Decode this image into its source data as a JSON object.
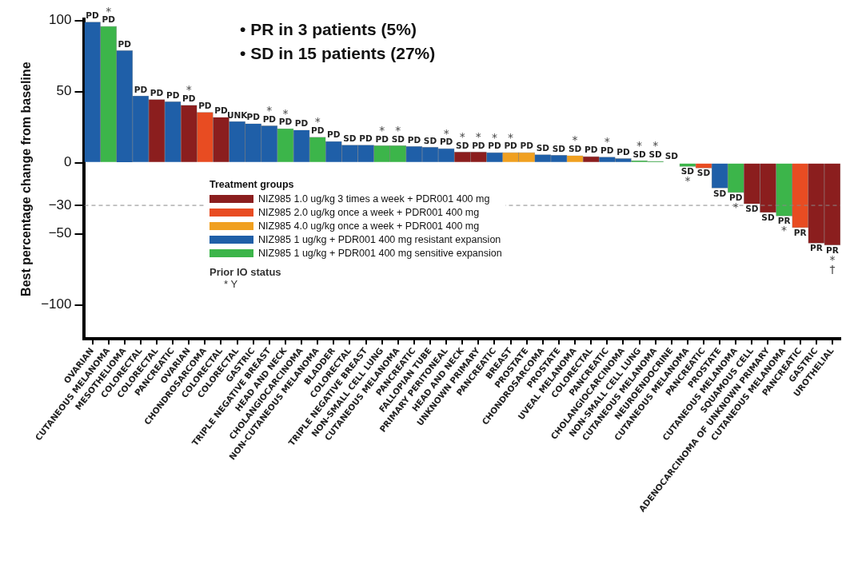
{
  "chart_data": {
    "type": "bar",
    "title": "• PR in 3 patients (5%)",
    "subtitle": "• SD in 15 patients (27%)",
    "ylabel": "Best percentage change from baseline",
    "legend_title": "Treatment groups",
    "legend": "center",
    "stacked": true,
    "grid": false,
    "categories": [
      "OVARIAN",
      "CUTANEOUS MELANOMA",
      "MESOTHELIOMA",
      "COLORECTAL",
      "COLORECTAL",
      "PANCREATIC",
      "OVARIAN",
      "CHONDROSARCOMA",
      "COLORECTAL",
      "COLORECTAL",
      "GASTRIC",
      "TRIPLE NEGATIVE BREAST",
      "HEAD AND NECK",
      "CHOLANGIOCARCINOMA",
      "NON-CUTANEOUS MELANOMA",
      "BLADDER",
      "COLORECTAL",
      "TRIPLE NEGATIVE BREAST",
      "NON-SMALL CELL LUNG",
      "CUTANEOUS MELANOMA",
      "PANCREATIC",
      "FALLOPIAN TUBE",
      "PRIMARY PERITONEAL",
      "HEAD AND NECK",
      "UNKNOWN PRIMARY",
      "PANCREATIC",
      "BREAST",
      "PROSTATE",
      "CHONDROSARCOMA",
      "PROSTATE",
      "UVEAL MELANOMA",
      "COLORECTAL",
      "PANCREATIC",
      "CHOLANGIOCARCINOMA",
      "NON-SMALL CELL LUNG",
      "CUTANEOUS MELANOMA",
      "NEUROENDOCRINE",
      "CUTANEOUS MELANOMA",
      "PANCREATIC",
      "PROSTATE",
      "CUTANEOUS MELANOMA",
      "SQUAMOUS CELL",
      "ADENOCARCINOMA OF UNKNOWN PRIMARY",
      "CUTANEOUS MELANOMA",
      "PANCREATIC",
      "GASTRIC",
      "UROTHELIAL"
    ],
    "series": [
      {
        "name": "NIZ985 1.0 ug/kg 3 times a week + PDR001 400 mg",
        "color": "#8b1e1e",
        "values": [
          null,
          null,
          null,
          null,
          44.5,
          null,
          40.5,
          null,
          32,
          null,
          null,
          null,
          null,
          null,
          null,
          null,
          null,
          null,
          null,
          null,
          null,
          null,
          null,
          7.6,
          7.6,
          null,
          null,
          null,
          null,
          null,
          null,
          4.4,
          null,
          null,
          null,
          null,
          null,
          null,
          null,
          null,
          null,
          -29,
          -35,
          null,
          null,
          -56.6,
          -58
        ],
        "value_labels": [
          null,
          null,
          null,
          null,
          "PD",
          null,
          "*\nPD",
          null,
          "PD",
          null,
          null,
          null,
          null,
          null,
          null,
          null,
          null,
          null,
          null,
          null,
          null,
          null,
          null,
          "*\nSD",
          "*\nPD",
          null,
          null,
          null,
          null,
          null,
          null,
          "PD",
          null,
          null,
          null,
          null,
          null,
          null,
          null,
          null,
          null,
          "SD",
          "SD",
          null,
          null,
          "PR",
          "PR\n*\n†"
        ]
      },
      {
        "name": "NIZ985 2.0 ug/kg once a week + PDR001 400 mg",
        "color": "#e84c22",
        "values": [
          null,
          null,
          null,
          null,
          null,
          null,
          null,
          35.5,
          null,
          null,
          null,
          null,
          null,
          null,
          null,
          null,
          null,
          null,
          null,
          null,
          null,
          null,
          null,
          null,
          null,
          null,
          null,
          null,
          null,
          null,
          null,
          null,
          null,
          null,
          null,
          null,
          null,
          null,
          -3.8,
          null,
          null,
          null,
          null,
          null,
          -45.7,
          null,
          null
        ],
        "value_labels": [
          null,
          null,
          null,
          null,
          null,
          null,
          null,
          "PD",
          null,
          null,
          null,
          null,
          null,
          null,
          null,
          null,
          null,
          null,
          null,
          null,
          null,
          null,
          null,
          null,
          null,
          null,
          null,
          null,
          null,
          null,
          null,
          null,
          null,
          null,
          null,
          null,
          null,
          null,
          "SD",
          null,
          null,
          null,
          null,
          null,
          "PR",
          null,
          null
        ]
      },
      {
        "name": "NIZ985 4.0 ug/kg once a week + PDR001 400 mg",
        "color": "#f0a020",
        "values": [
          null,
          null,
          null,
          null,
          null,
          null,
          null,
          null,
          null,
          null,
          null,
          null,
          null,
          null,
          null,
          null,
          null,
          null,
          null,
          null,
          null,
          null,
          null,
          null,
          null,
          null,
          7.2,
          7.2,
          null,
          null,
          5,
          null,
          null,
          null,
          null,
          null,
          null,
          null,
          null,
          null,
          null,
          null,
          null,
          null,
          null,
          null,
          null
        ],
        "value_labels": [
          null,
          null,
          null,
          null,
          null,
          null,
          null,
          null,
          null,
          null,
          null,
          null,
          null,
          null,
          null,
          null,
          null,
          null,
          null,
          null,
          null,
          null,
          null,
          null,
          null,
          null,
          "*\nPD",
          "PD",
          null,
          null,
          "*\nSD",
          null,
          null,
          null,
          null,
          null,
          null,
          null,
          null,
          null,
          null,
          null,
          null,
          null,
          null,
          null,
          null
        ]
      },
      {
        "name": "NIZ985 1 ug/kg + PDR001 400 mg resistant expansion",
        "color": "#1f5fa8",
        "values": [
          99,
          null,
          79,
          47,
          null,
          43,
          null,
          null,
          null,
          29,
          27.5,
          26,
          null,
          23,
          null,
          15,
          12.5,
          12.5,
          null,
          null,
          11.5,
          11,
          10,
          null,
          null,
          7.2,
          null,
          null,
          5.7,
          5.3,
          null,
          null,
          4,
          3,
          null,
          null,
          0,
          null,
          null,
          -17.9,
          null,
          null,
          null,
          null,
          null,
          null,
          null
        ],
        "value_labels": [
          "PD",
          null,
          "PD",
          "PD",
          null,
          "PD",
          null,
          null,
          null,
          "UNK",
          "PD",
          "*\nPD",
          null,
          "PD",
          null,
          "PD",
          "SD",
          "PD",
          null,
          null,
          "PD",
          "SD",
          "*\nPD",
          null,
          null,
          "*\nPD",
          null,
          null,
          "SD",
          "SD",
          null,
          null,
          "*\nPD",
          "PD",
          null,
          null,
          "SD",
          null,
          null,
          "SD",
          null,
          null,
          null,
          null,
          null,
          null,
          null
        ]
      },
      {
        "name": "NIZ985 1 ug/kg + PDR001 400 mg sensitive expansion",
        "color": "#3cb54a",
        "values": [
          null,
          96,
          null,
          null,
          null,
          null,
          null,
          null,
          null,
          null,
          null,
          null,
          24,
          null,
          18,
          null,
          null,
          null,
          12,
          12,
          null,
          null,
          null,
          null,
          null,
          null,
          null,
          null,
          null,
          null,
          null,
          null,
          null,
          null,
          1.5,
          1.1,
          null,
          -2.7,
          null,
          null,
          -21,
          null,
          null,
          -37.5,
          null,
          null,
          null
        ],
        "value_labels": [
          null,
          "*\nPD",
          null,
          null,
          null,
          null,
          null,
          null,
          null,
          null,
          null,
          null,
          "*\nPD",
          null,
          "*\nPD",
          null,
          null,
          null,
          "*\nPD",
          "*\nSD",
          null,
          null,
          null,
          null,
          null,
          null,
          null,
          null,
          null,
          null,
          null,
          null,
          null,
          null,
          "*\nSD",
          "*\nSD",
          null,
          "SD\n*",
          null,
          null,
          "PD\n*",
          null,
          null,
          "PR\n*",
          null,
          null,
          null
        ]
      }
    ],
    "ylim": [
      -124,
      101
    ],
    "yticks": [
      100,
      50,
      0,
      {
        "value": -30,
        "label": "−30"
      },
      {
        "value": -50,
        "label": "−50"
      },
      {
        "value": -100,
        "label": "−100"
      }
    ],
    "ref_lines": [
      {
        "axis": "y",
        "value": -30,
        "line_style": "dashed",
        "color": "#888888"
      }
    ],
    "annotations": [
      "Prior IO status",
      "* Y"
    ]
  }
}
